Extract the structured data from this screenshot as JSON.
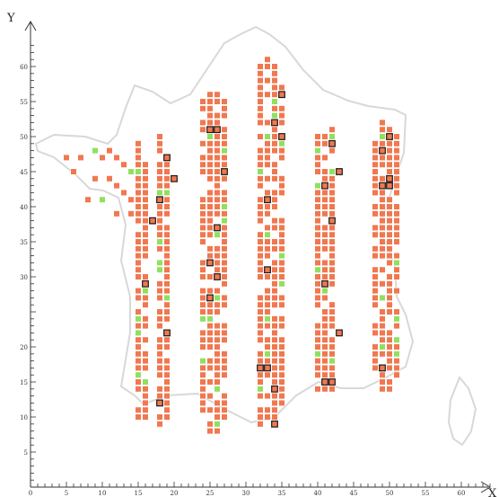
{
  "chart_data": {
    "type": "scatter",
    "title": "",
    "xlabel": "X",
    "ylabel": "Y",
    "xlim": [
      0,
      65
    ],
    "ylim": [
      0,
      64
    ],
    "x_tick_labels": [
      "0",
      "5",
      "10",
      "15",
      "20",
      "25",
      "30",
      "35",
      "40",
      "45",
      "50",
      "55",
      "60"
    ],
    "y_tick_labels": [
      "5",
      "10",
      "15",
      "20",
      "",
      "30",
      "35",
      "40",
      "45",
      "50",
      "55",
      "60"
    ],
    "y_tick_values": [
      5,
      10,
      15,
      20,
      25,
      30,
      35,
      40,
      45,
      50,
      55,
      60
    ],
    "grid": false,
    "legend": "none",
    "colors": {
      "orange": "#f07850",
      "green": "#90e060",
      "highlight_border": "#1a1a1a",
      "outline": "#d8d8d8",
      "axis": "#333333"
    },
    "columns": [
      {
        "x_values": [
          18.0,
          19.0
        ],
        "y_ranges": [
          [
            9,
            50
          ],
          [
            9,
            48
          ]
        ]
      },
      {
        "x_values": [
          24.0,
          25.0,
          26.0,
          27.0
        ],
        "y_ranges": [
          [
            11,
            55
          ],
          [
            8,
            56
          ],
          [
            8,
            56
          ],
          [
            10,
            55
          ]
        ]
      },
      {
        "x_values": [
          32.0,
          33.0,
          34.0,
          35.0
        ],
        "y_ranges": [
          [
            9,
            60
          ],
          [
            8,
            61
          ],
          [
            10,
            60
          ],
          [
            12,
            58
          ]
        ]
      },
      {
        "x_values": [
          40.0,
          41.0,
          42.0
        ],
        "y_ranges": [
          [
            14,
            50
          ],
          [
            14,
            50
          ],
          [
            14,
            52
          ]
        ]
      },
      {
        "x_values": [
          48.0,
          49.0,
          50.0,
          51.0
        ],
        "y_ranges": [
          [
            17,
            51
          ],
          [
            14,
            52
          ],
          [
            14,
            51
          ],
          [
            16,
            50
          ]
        ]
      },
      {
        "x_values": [
          15.0,
          16.0
        ],
        "y_ranges": [
          [
            10,
            50
          ],
          [
            10,
            47
          ]
        ]
      }
    ],
    "western_points": {
      "x": [
        5,
        6,
        7,
        8,
        9,
        9,
        10,
        10,
        11,
        11,
        12,
        12,
        12,
        13,
        13,
        14,
        14,
        14,
        15,
        15,
        16,
        16
      ],
      "y": [
        47,
        45,
        47,
        41,
        48,
        44,
        47,
        41,
        48,
        44,
        47,
        43,
        39,
        46,
        42,
        45,
        41,
        39,
        46,
        42,
        44,
        40
      ],
      "color_key": [
        "orange",
        "orange",
        "orange",
        "orange",
        "green",
        "orange",
        "orange",
        "green",
        "orange",
        "orange",
        "orange",
        "orange",
        "orange",
        "orange",
        "orange",
        "green",
        "orange",
        "orange",
        "orange",
        "orange",
        "orange",
        "orange"
      ]
    },
    "highlighted_points": {
      "x": [
        19,
        20,
        18,
        17,
        16,
        19,
        18,
        25,
        26,
        27,
        26,
        25,
        26,
        25,
        33,
        35,
        34,
        33,
        32,
        34,
        34,
        33,
        35,
        41,
        43,
        42,
        41,
        43,
        42,
        41,
        42,
        49,
        50,
        50,
        49,
        50,
        49
      ],
      "y": [
        47,
        44,
        41,
        38,
        29,
        22,
        12,
        51,
        51,
        45,
        37,
        32,
        30,
        27,
        41,
        56,
        52,
        31,
        17,
        14,
        9,
        17,
        50,
        43,
        45,
        38,
        29,
        22,
        15,
        15,
        49,
        48,
        44,
        43,
        17,
        50,
        43
      ],
      "color_key": [
        "orange",
        "orange",
        "orange",
        "orange",
        "orange",
        "orange",
        "orange",
        "orange",
        "orange",
        "orange",
        "orange",
        "orange",
        "orange",
        "orange",
        "orange",
        "orange",
        "orange",
        "orange",
        "orange",
        "orange",
        "orange",
        "orange",
        "orange",
        "orange",
        "orange",
        "orange",
        "orange",
        "orange",
        "orange",
        "orange",
        "orange",
        "orange",
        "orange",
        "orange",
        "orange",
        "orange",
        "orange"
      ]
    }
  }
}
